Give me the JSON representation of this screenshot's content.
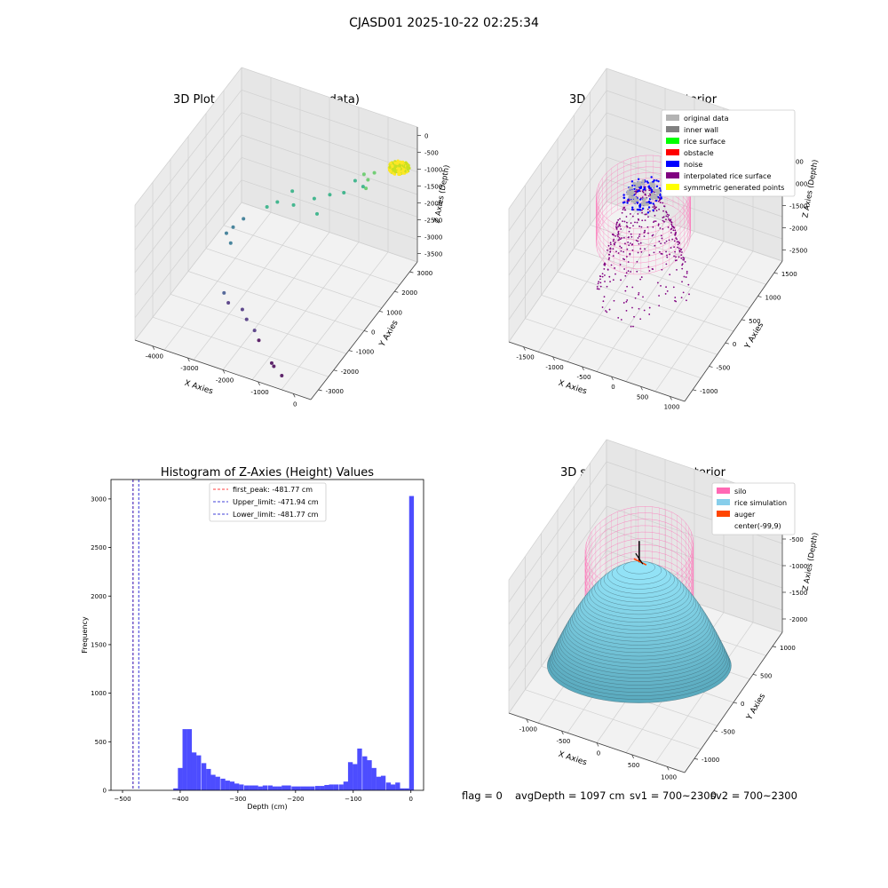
{
  "suptitle": "CJASD01 2025-10-22 02:25:34",
  "status": {
    "flag": "flag = 0",
    "avg": "avgDepth = 1097 cm",
    "sv1": "sv1 = 700~2300",
    "sv2": "sv2 = 700~2300"
  },
  "chart_data": [
    {
      "type": "scatter",
      "subtype": "3d",
      "title": "3D Plot of Silo Interior(row data)",
      "xlabel": "X Axies",
      "ylabel": "Y Axies",
      "zlabel": "Z Axies (Depth)",
      "xticks": [
        "-4000",
        "-3000",
        "-2000",
        "-1000",
        "0"
      ],
      "yticks": [
        "-3000",
        "-2000",
        "-1000",
        "0",
        "1000",
        "2000",
        "3000"
      ],
      "zticks": [
        "0",
        "-500",
        "-1000",
        "-1500",
        "-2000",
        "-2500",
        "-3000",
        "-3500"
      ],
      "xlim": [
        -4300,
        500
      ],
      "ylim": [
        -3500,
        3500
      ],
      "zlim": [
        -3800,
        100
      ],
      "colormap": "viridis",
      "grid": true,
      "points": [
        {
          "x": -300,
          "y": 2600,
          "z": -1000
        },
        {
          "x": -350,
          "y": 2300,
          "z": -1050
        },
        {
          "x": -280,
          "y": 2000,
          "z": -1100
        },
        {
          "x": -500,
          "y": 2400,
          "z": -1000
        },
        {
          "x": -400,
          "y": 2100,
          "z": -1150
        },
        {
          "x": -700,
          "y": 2300,
          "z": -1200
        },
        {
          "x": -800,
          "y": 1800,
          "z": -1300
        },
        {
          "x": -1100,
          "y": 1600,
          "z": -1350
        },
        {
          "x": -1400,
          "y": 1300,
          "z": -1400
        },
        {
          "x": -1200,
          "y": 1000,
          "z": -1600
        },
        {
          "x": -1800,
          "y": 900,
          "z": -1500
        },
        {
          "x": -2000,
          "y": 1300,
          "z": -1400
        },
        {
          "x": -2200,
          "y": 800,
          "z": -1500
        },
        {
          "x": -2400,
          "y": 600,
          "z": -1600
        },
        {
          "x": -3000,
          "y": 500,
          "z": -2100
        },
        {
          "x": -3200,
          "y": 300,
          "z": -2300
        },
        {
          "x": -3300,
          "y": 100,
          "z": -2400
        },
        {
          "x": -3100,
          "y": -100,
          "z": -2500
        },
        {
          "x": -2700,
          "y": -1500,
          "z": -3000
        },
        {
          "x": -2500,
          "y": -1700,
          "z": -3100
        },
        {
          "x": -2200,
          "y": -1500,
          "z": -3300
        },
        {
          "x": -2000,
          "y": -1700,
          "z": -3400
        },
        {
          "x": -1700,
          "y": -1900,
          "z": -3500
        },
        {
          "x": -1500,
          "y": -2100,
          "z": -3600
        },
        {
          "x": -900,
          "y": -2700,
          "z": -3700
        },
        {
          "x": -800,
          "y": -2800,
          "z": -3700
        },
        {
          "x": -500,
          "y": -3000,
          "z": -3750
        }
      ],
      "cluster": {
        "x": 200,
        "y": 3000,
        "z": -900,
        "count": 160
      }
    },
    {
      "type": "scatter",
      "subtype": "3d",
      "title": "3D classify of Silo Interior",
      "xlabel": "X Axies",
      "ylabel": "Y Axies",
      "zlabel": "Z Axies (Depth)",
      "xticks": [
        "-1500",
        "-1000",
        "-500",
        "0",
        "500",
        "1000"
      ],
      "yticks": [
        "-1000",
        "-500",
        "0",
        "500",
        "1000",
        "1500"
      ],
      "zticks": [
        "0",
        "-500",
        "-1000",
        "-1500",
        "-2000",
        "-2500"
      ],
      "xlim": [
        -1600,
        1400
      ],
      "ylim": [
        -1300,
        1600
      ],
      "zlim": [
        -2800,
        100
      ],
      "legend_position": "upper right",
      "legend": [
        {
          "label": "original data",
          "color": "#b3b3b3"
        },
        {
          "label": "inner wall",
          "color": "#808080"
        },
        {
          "label": "rice surface",
          "color": "#00ff00"
        },
        {
          "label": "obstacle",
          "color": "#ff0000"
        },
        {
          "label": "noise",
          "color": "#0000ff"
        },
        {
          "label": "interpolated rice surface",
          "color": "#800080"
        },
        {
          "label": "symmetric generated points",
          "color": "#ffff00"
        }
      ]
    },
    {
      "type": "bar",
      "subtype": "histogram",
      "title": "Histogram of Z-Axies (Height) Values",
      "xlabel": "Depth (cm)",
      "ylabel": "Frequency",
      "xlim": [
        -520,
        22
      ],
      "ylim": [
        0,
        3200
      ],
      "xticks": [
        -500,
        -400,
        -300,
        -200,
        -100,
        0
      ],
      "yticks": [
        0,
        500,
        1000,
        1500,
        2000,
        2500,
        3000
      ],
      "bar_color": "#4d4dff",
      "bin_width": 8.2,
      "bins_start": [
        -412,
        -404,
        -396,
        -388,
        -380,
        -372,
        -363,
        -355,
        -347,
        -339,
        -330,
        -322,
        -314,
        -306,
        -298,
        -289,
        -281,
        -273,
        -265,
        -257,
        -248,
        -240,
        -232,
        -224,
        -216,
        -207,
        -199,
        -191,
        -183,
        -175,
        -166,
        -158,
        -150,
        -142,
        -134,
        -125,
        -117,
        -109,
        -101,
        -93,
        -84,
        -76,
        -68,
        -60,
        -52,
        -43,
        -35,
        -27,
        -19,
        -11,
        -3
      ],
      "frequencies": [
        20,
        230,
        630,
        630,
        390,
        360,
        280,
        220,
        160,
        140,
        120,
        100,
        90,
        70,
        60,
        50,
        50,
        50,
        40,
        50,
        50,
        40,
        40,
        50,
        50,
        40,
        40,
        40,
        40,
        40,
        45,
        45,
        55,
        60,
        60,
        60,
        90,
        290,
        270,
        430,
        350,
        310,
        230,
        140,
        150,
        80,
        60,
        80,
        20,
        20,
        3030
      ],
      "lines": [
        {
          "label": "first_peak: -481.77 cm",
          "x": -481.77,
          "color": "#ff0000",
          "style": "dashed"
        },
        {
          "label": "Upper_limit: -471.94 cm",
          "x": -471.94,
          "color": "#0000cd",
          "style": "dashed"
        },
        {
          "label": "Lower_limit: -481.77 cm",
          "x": -481.77,
          "color": "#0000cd",
          "style": "dashed"
        }
      ],
      "legend_position": "upper center"
    },
    {
      "type": "area",
      "subtype": "3d-surface",
      "title": "3D simulation of Silo Interior",
      "xlabel": "X Axies",
      "ylabel": "Y Axies",
      "zlabel": "Z Axies (Depth)",
      "xticks": [
        "-1000",
        "-500",
        "0",
        "500",
        "1000"
      ],
      "yticks": [
        "-1000",
        "-500",
        "0",
        "500",
        "1000"
      ],
      "zticks": [
        "0",
        "-500",
        "-1000",
        "-1500",
        "-2000"
      ],
      "xlim": [
        -1300,
        1300
      ],
      "ylim": [
        -1300,
        1300
      ],
      "zlim": [
        -2300,
        200
      ],
      "legend_position": "upper right",
      "legend": [
        {
          "label": "silo",
          "color": "#ff69b4"
        },
        {
          "label": "rice simulation",
          "color": "#87ceeb"
        },
        {
          "label": "auger",
          "color": "#ff4500"
        },
        {
          "label": "center(-99,9)",
          "color": "none"
        }
      ]
    }
  ]
}
